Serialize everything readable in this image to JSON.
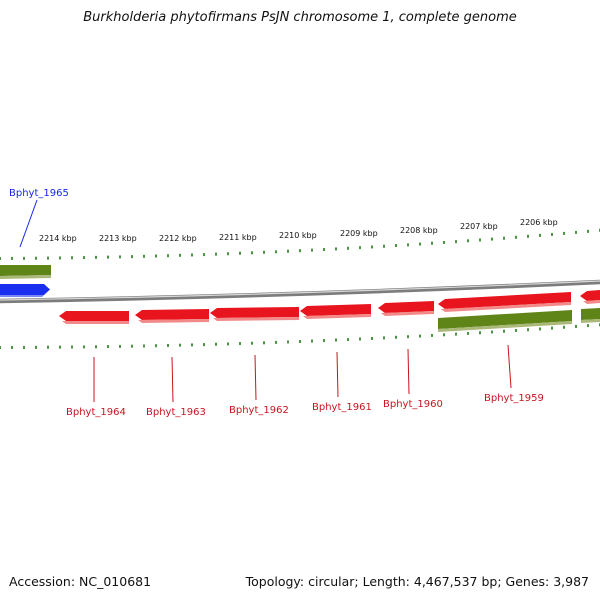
{
  "title": "Burkholderia phytofirmans PsJN chromosome 1, complete genome",
  "footer": {
    "accession": "Accession: NC_010681",
    "summary": "Topology: circular; Length: 4,467,537 bp; Genes: 3,987"
  },
  "colors": {
    "reverse_gene": "#e8141e",
    "forward_gene": "#1428e6",
    "other_feature": "#5a7d14",
    "tick": "#1e7a14",
    "backbone": "#8a8a8a"
  },
  "scale_labels": [
    "2214 kbp",
    "2213 kbp",
    "2212 kbp",
    "2211 kbp",
    "2210 kbp",
    "2209 kbp",
    "2208 kbp",
    "2207 kbp",
    "2206 kbp"
  ],
  "genes": [
    {
      "label": "Bphyt_1965",
      "color": "#1428e6"
    },
    {
      "label": "Bphyt_1964",
      "color": "#c8141e"
    },
    {
      "label": "Bphyt_1963",
      "color": "#c8141e"
    },
    {
      "label": "Bphyt_1962",
      "color": "#c8141e"
    },
    {
      "label": "Bphyt_1961",
      "color": "#c8141e"
    },
    {
      "label": "Bphyt_1960",
      "color": "#c8141e"
    },
    {
      "label": "Bphyt_1959",
      "color": "#c8141e"
    }
  ]
}
